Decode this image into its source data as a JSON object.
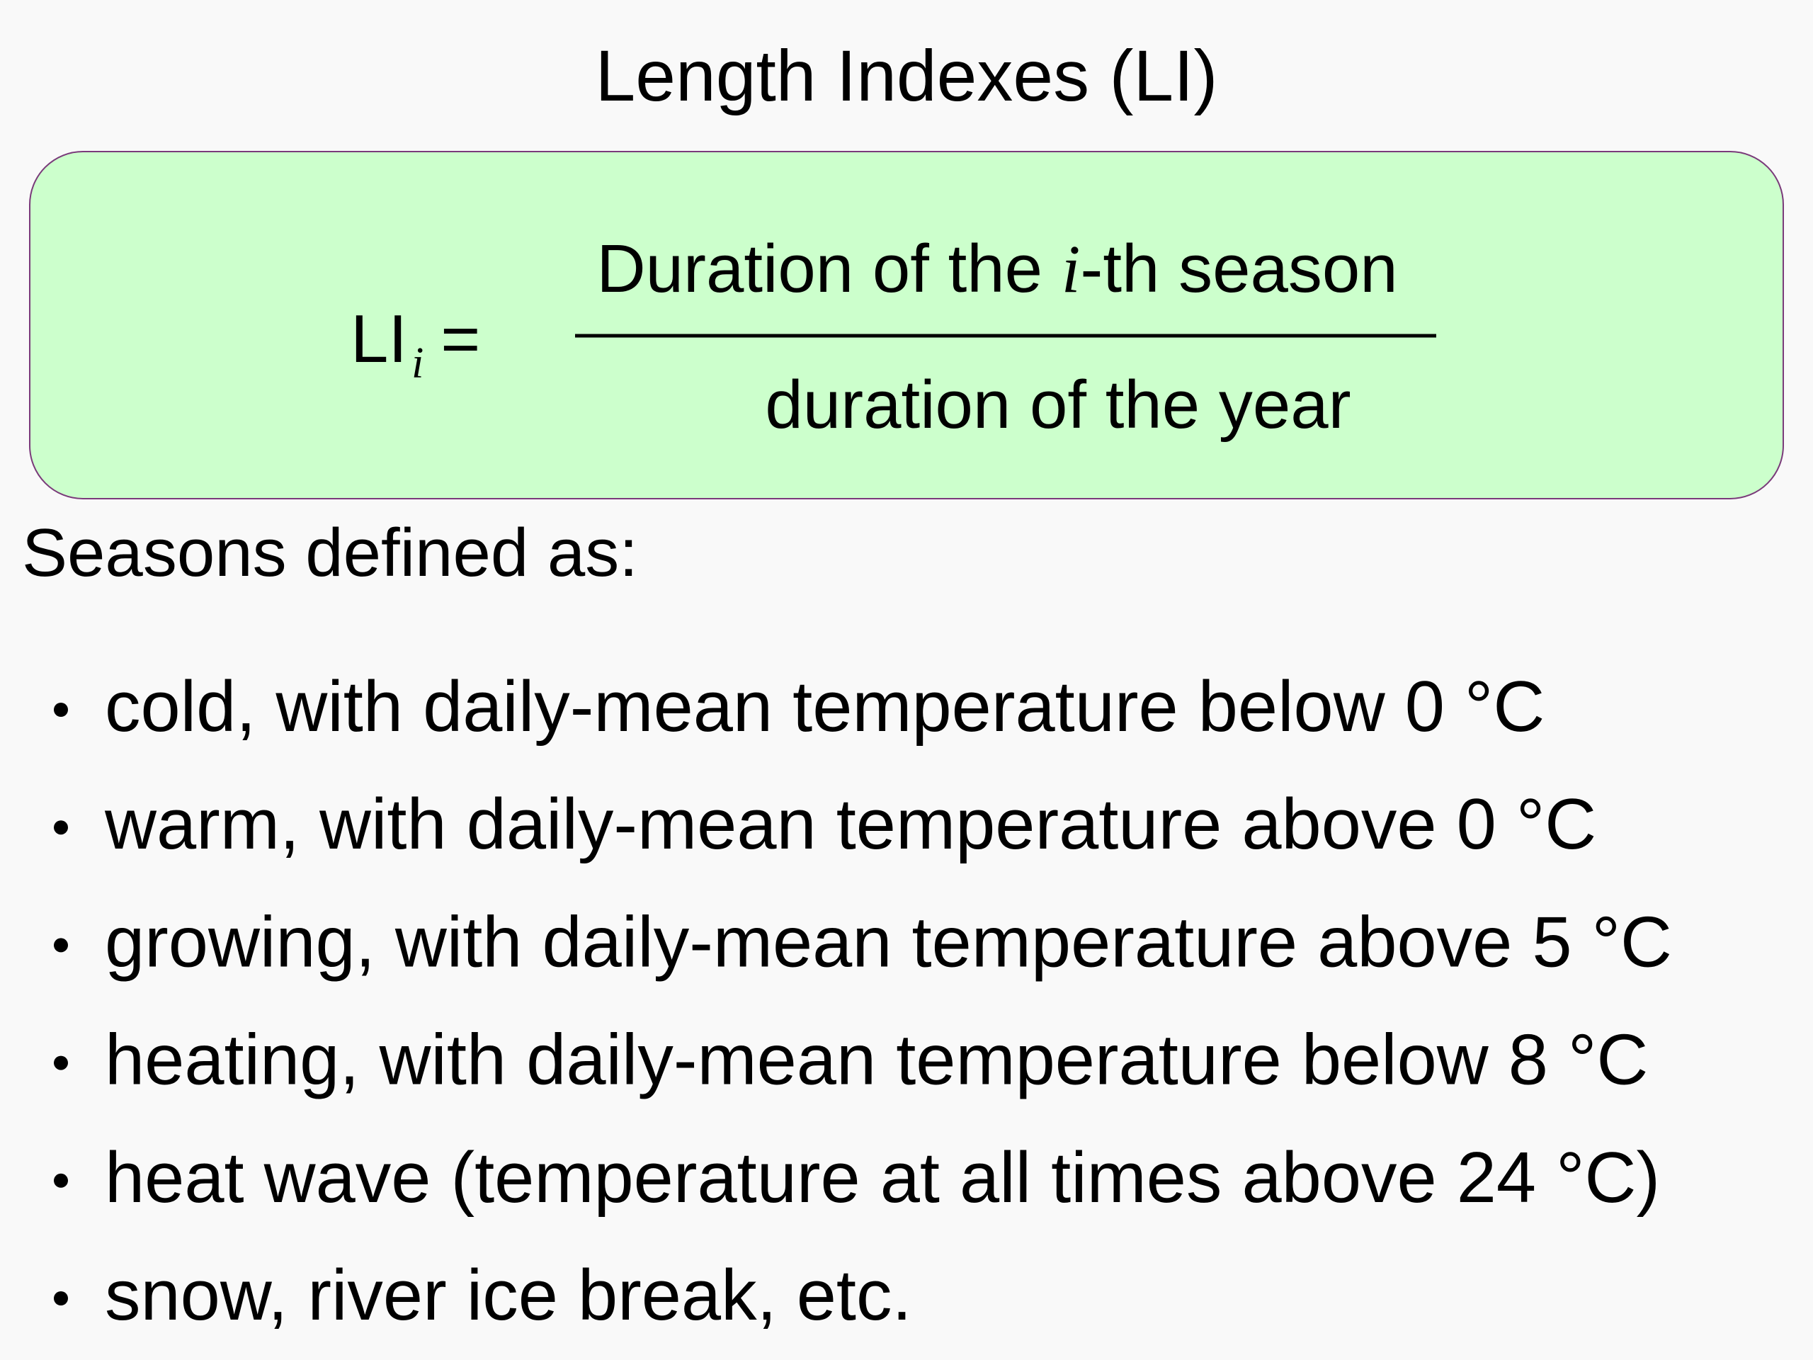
{
  "title": "Length Indexes (LI)",
  "formula": {
    "lhs": "LI",
    "lhs_subscript": "i",
    "equals": "=",
    "numerator_before": "Duration of the",
    "numerator_italic": "i",
    "numerator_after": "-th season",
    "denominator": "duration of the year"
  },
  "intro": "Seasons defined as:",
  "bullets": [
    "cold, with daily-mean temperature below 0 °C",
    "warm, with daily-mean temperature above 0 °C",
    "growing, with daily-mean temperature above 5 °C",
    "heating, with daily-mean temperature below 8 °C",
    "heat wave (temperature at all times above 24 °C)",
    "snow, river ice break, etc."
  ]
}
